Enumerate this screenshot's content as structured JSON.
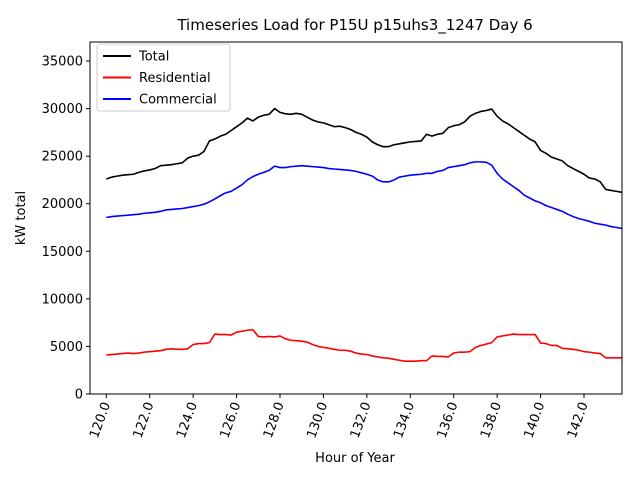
{
  "chart_data": {
    "type": "line",
    "title": "Timeseries Load for P15U p15uhs3_1247  Day 6",
    "xlabel": "Hour of Year",
    "ylabel": "kW total",
    "xlim": [
      119.25,
      143.75
    ],
    "ylim": [
      0,
      37000
    ],
    "xticks": [
      120,
      122,
      124,
      126,
      128,
      130,
      132,
      134,
      136,
      138,
      140,
      142
    ],
    "xtick_labels": [
      "120.0",
      "122.0",
      "124.0",
      "126.0",
      "128.0",
      "130.0",
      "132.0",
      "134.0",
      "136.0",
      "138.0",
      "140.0",
      "142.0"
    ],
    "yticks": [
      0,
      5000,
      10000,
      15000,
      20000,
      25000,
      30000,
      35000
    ],
    "ytick_labels": [
      "0",
      "5000",
      "10000",
      "15000",
      "20000",
      "25000",
      "30000",
      "35000"
    ],
    "legend_position": "top-left",
    "x": [
      120.0,
      120.25,
      120.5,
      120.75,
      121.0,
      121.25,
      121.5,
      121.75,
      122.0,
      122.25,
      122.5,
      122.75,
      123.0,
      123.25,
      123.5,
      123.75,
      124.0,
      124.25,
      124.5,
      124.75,
      125.0,
      125.25,
      125.5,
      125.75,
      126.0,
      126.25,
      126.5,
      126.75,
      127.0,
      127.25,
      127.5,
      127.75,
      128.0,
      128.25,
      128.5,
      128.75,
      129.0,
      129.25,
      129.5,
      129.75,
      130.0,
      130.25,
      130.5,
      130.75,
      131.0,
      131.25,
      131.5,
      131.75,
      132.0,
      132.25,
      132.5,
      132.75,
      133.0,
      133.25,
      133.5,
      133.75,
      134.0,
      134.25,
      134.5,
      134.75,
      135.0,
      135.25,
      135.5,
      135.75,
      136.0,
      136.25,
      136.5,
      136.75,
      137.0,
      137.25,
      137.5,
      137.75,
      138.0,
      138.25,
      138.5,
      138.75,
      139.0,
      139.25,
      139.5,
      139.75,
      140.0,
      140.25,
      140.5,
      140.75,
      141.0,
      141.25,
      141.5,
      141.75,
      142.0,
      142.25,
      142.5,
      142.75,
      143.0,
      143.25,
      143.5,
      143.75
    ],
    "series": [
      {
        "name": "Total",
        "color": "#000000",
        "values": [
          22600,
          22800,
          22900,
          23000,
          23050,
          23100,
          23300,
          23450,
          23550,
          23700,
          24000,
          24050,
          24100,
          24200,
          24300,
          24800,
          25000,
          25100,
          25500,
          26600,
          26800,
          27100,
          27300,
          27700,
          28100,
          28500,
          29000,
          28700,
          29100,
          29300,
          29400,
          30000,
          29600,
          29450,
          29400,
          29500,
          29400,
          29100,
          28800,
          28600,
          28500,
          28300,
          28100,
          28150,
          28000,
          27800,
          27500,
          27300,
          27000,
          26500,
          26200,
          26000,
          26000,
          26200,
          26300,
          26400,
          26500,
          26550,
          26600,
          27300,
          27100,
          27300,
          27400,
          28000,
          28200,
          28300,
          28600,
          29200,
          29500,
          29700,
          29800,
          29950,
          29200,
          28700,
          28400,
          28000,
          27600,
          27200,
          26800,
          26500,
          25600,
          25300,
          24900,
          24700,
          24500,
          24000,
          23700,
          23400,
          23100,
          22700,
          22600,
          22300,
          21500,
          21400,
          21300,
          21200
        ]
      },
      {
        "name": "Residential",
        "color": "#ff0000",
        "values": [
          4100,
          4150,
          4200,
          4250,
          4300,
          4250,
          4300,
          4400,
          4450,
          4500,
          4550,
          4700,
          4750,
          4700,
          4700,
          4750,
          5200,
          5300,
          5300,
          5400,
          6300,
          6250,
          6250,
          6200,
          6500,
          6600,
          6700,
          6750,
          6050,
          6000,
          6050,
          6000,
          6100,
          5800,
          5650,
          5600,
          5550,
          5450,
          5200,
          5000,
          4900,
          4800,
          4700,
          4600,
          4600,
          4500,
          4300,
          4200,
          4150,
          4000,
          3900,
          3800,
          3750,
          3650,
          3550,
          3450,
          3450,
          3450,
          3500,
          3500,
          4000,
          3950,
          3950,
          3900,
          4300,
          4400,
          4400,
          4450,
          4900,
          5100,
          5250,
          5400,
          6000,
          6100,
          6200,
          6300,
          6250,
          6250,
          6250,
          6250,
          5350,
          5300,
          5100,
          5100,
          4800,
          4750,
          4700,
          4600,
          4450,
          4400,
          4300,
          4250,
          3800,
          3800,
          3800,
          3800
        ]
      },
      {
        "name": "Commercial",
        "color": "#0000ff",
        "values": [
          18550,
          18650,
          18700,
          18750,
          18800,
          18850,
          18900,
          19000,
          19050,
          19100,
          19200,
          19350,
          19400,
          19450,
          19500,
          19600,
          19700,
          19800,
          19950,
          20200,
          20500,
          20850,
          21150,
          21300,
          21650,
          22000,
          22500,
          22850,
          23100,
          23300,
          23500,
          23950,
          23800,
          23800,
          23900,
          23950,
          24000,
          23950,
          23900,
          23850,
          23800,
          23700,
          23650,
          23600,
          23550,
          23500,
          23400,
          23250,
          23100,
          22900,
          22500,
          22300,
          22300,
          22500,
          22800,
          22900,
          23000,
          23050,
          23100,
          23200,
          23200,
          23400,
          23500,
          23800,
          23900,
          24000,
          24100,
          24300,
          24400,
          24400,
          24350,
          24050,
          23200,
          22600,
          22200,
          21800,
          21400,
          20900,
          20600,
          20300,
          20100,
          19800,
          19600,
          19400,
          19200,
          18900,
          18650,
          18450,
          18300,
          18150,
          17950,
          17850,
          17750,
          17600,
          17500,
          17400
        ]
      }
    ]
  }
}
